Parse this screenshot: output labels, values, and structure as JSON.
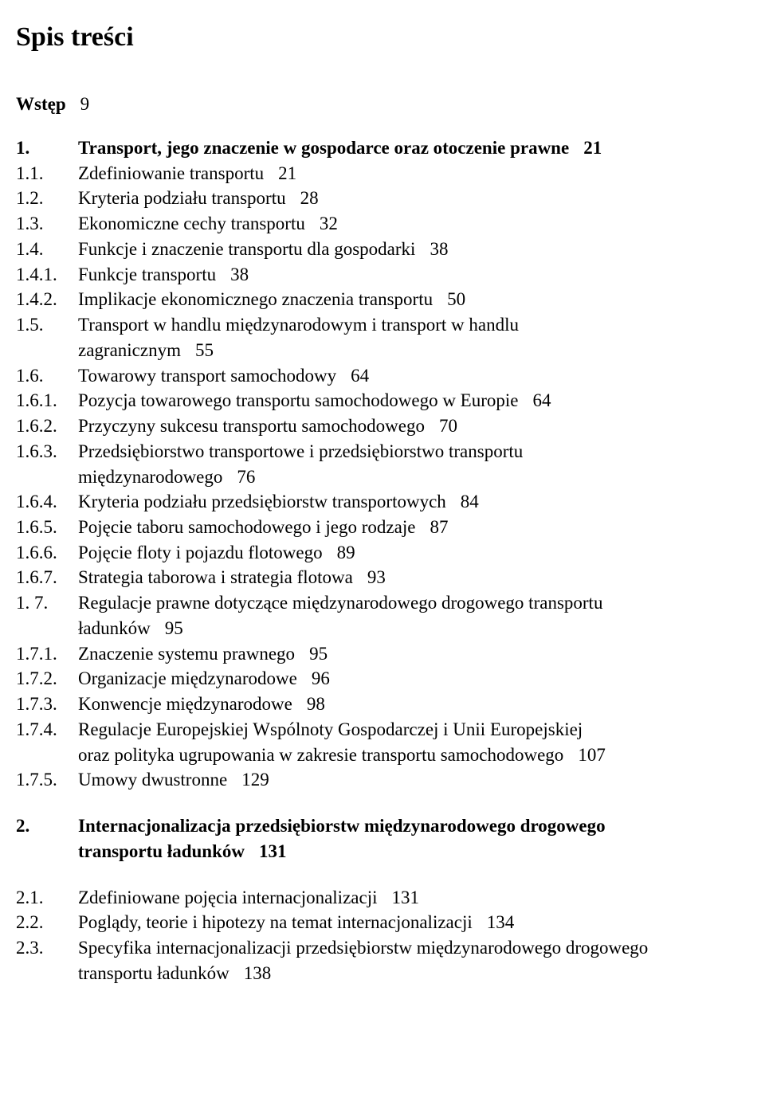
{
  "title": "Spis treści",
  "intro": {
    "label": "Wstęp",
    "page": "9"
  },
  "entries": [
    {
      "num": "1.",
      "text": "Transport, jego znaczenie w gospodarce oraz otoczenie prawne",
      "page": "21",
      "bold": true
    },
    {
      "num": "1.1.",
      "text": "Zdefiniowanie transportu",
      "page": "21"
    },
    {
      "num": "1.2.",
      "text": "Kryteria podziału transportu",
      "page": "28"
    },
    {
      "num": "1.3.",
      "text": "Ekonomiczne cechy transportu",
      "page": "32"
    },
    {
      "num": "1.4.",
      "text": "Funkcje i znaczenie transportu dla gospodarki",
      "page": "38"
    },
    {
      "num": "1.4.1.",
      "text": "Funkcje transportu",
      "page": "38"
    },
    {
      "num": "1.4.2.",
      "text": "Implikacje ekonomicznego znaczenia transportu",
      "page": "50"
    },
    {
      "num": "1.5.",
      "text": "Transport w handlu międzynarodowym i transport w handlu",
      "cont": "zagranicznym",
      "page": "55"
    },
    {
      "num": "1.6.",
      "text": "Towarowy transport samochodowy",
      "page": "64"
    },
    {
      "num": "1.6.1.",
      "text": "Pozycja towarowego transportu samochodowego w Europie",
      "page": "64"
    },
    {
      "num": "1.6.2.",
      "text": "Przyczyny sukcesu transportu samochodowego",
      "page": "70"
    },
    {
      "num": "1.6.3.",
      "text": "Przedsiębiorstwo transportowe i przedsiębiorstwo transportu",
      "cont": "międzynarodowego",
      "page": "76"
    },
    {
      "num": "1.6.4.",
      "text": "Kryteria podziału przedsiębiorstw transportowych",
      "page": "84"
    },
    {
      "num": "1.6.5.",
      "text": "Pojęcie taboru samochodowego i jego rodzaje",
      "page": "87"
    },
    {
      "num": "1.6.6.",
      "text": "Pojęcie floty i pojazdu flotowego",
      "page": "89"
    },
    {
      "num": "1.6.7.",
      "text": "Strategia taborowa i strategia flotowa",
      "page": "93"
    },
    {
      "num": "1. 7.",
      "text": "Regulacje prawne dotyczące międzynarodowego drogowego transportu",
      "cont": "ładunków",
      "page": "95"
    },
    {
      "num": "1.7.1.",
      "text": "Znaczenie systemu prawnego",
      "page": "95"
    },
    {
      "num": "1.7.2.",
      "text": "Organizacje międzynarodowe",
      "page": "96"
    },
    {
      "num": "1.7.3.",
      "text": "Konwencje międzynarodowe",
      "page": "98"
    },
    {
      "num": "1.7.4.",
      "text": "Regulacje Europejskiej Wspólnoty Gospodarczej i Unii Europejskiej",
      "cont": "oraz polityka ugrupowania w zakresie transportu samochodowego",
      "page": "107"
    },
    {
      "num": "1.7.5.",
      "text": "Umowy dwustronne",
      "page": "129"
    },
    {
      "gap": true
    },
    {
      "num": "2.",
      "text": "Internacjonalizacja przedsiębiorstw międzynarodowego drogowego",
      "cont": "transportu ładunków",
      "page": "131",
      "bold": true
    },
    {
      "gap": true
    },
    {
      "num": "2.1.",
      "text": "Zdefiniowane pojęcia internacjonalizacji",
      "page": "131"
    },
    {
      "num": "2.2.",
      "text": "Poglądy, teorie i hipotezy na temat internacjonalizacji",
      "page": "134"
    },
    {
      "num": "2.3.",
      "text": "Specyfika internacjonalizacji przedsiębiorstw międzynarodowego drogowego",
      "cont": "transportu ładunków",
      "page": "138"
    }
  ]
}
